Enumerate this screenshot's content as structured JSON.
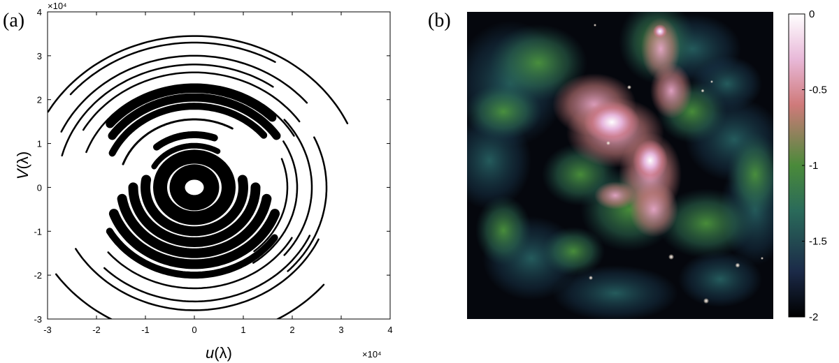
{
  "panels": {
    "a_label": "(a)",
    "b_label": "(b)"
  },
  "chart_data": [
    {
      "type": "scatter",
      "description_panel": "(a)",
      "xlabel_var": "u",
      "xlabel_unit": "(λ)",
      "ylabel_var": "V",
      "ylabel_unit": "(λ)",
      "x_exponent": "×10⁴",
      "y_exponent": "×10⁴",
      "xlim": [
        -3,
        4
      ],
      "ylim": [
        -3,
        4
      ],
      "xticks": [
        "-3",
        "-2",
        "-1",
        "0",
        "1",
        "2",
        "3",
        "4"
      ],
      "yticks": [
        "-3",
        "-2",
        "-1",
        "0",
        "1",
        "2",
        "3",
        "4"
      ],
      "grid": false,
      "legend": "none",
      "tracks": [
        {
          "r": 3.45,
          "start_deg": 150,
          "end_deg": 25,
          "width": 2.5
        },
        {
          "r": 3.3,
          "start_deg": 140,
          "end_deg": 60,
          "width": 2.5
        },
        {
          "r": 3.0,
          "start_deg": 155,
          "end_deg": 40,
          "width": 2.5
        },
        {
          "r": 2.8,
          "start_deg": 165,
          "end_deg": 55,
          "width": 2.5
        },
        {
          "r": 2.62,
          "start_deg": 150,
          "end_deg": 35,
          "width": 2.5
        },
        {
          "r": 2.35,
          "start_deg": 160,
          "end_deg": 30,
          "width": 2.5
        },
        {
          "r": 2.25,
          "start_deg": 140,
          "end_deg": 45,
          "width": 12
        },
        {
          "r": 2.05,
          "start_deg": 145,
          "end_deg": 35,
          "width": 12
        },
        {
          "r": 1.85,
          "start_deg": 155,
          "end_deg": 40,
          "width": 10
        },
        {
          "r": 1.55,
          "start_deg": 160,
          "end_deg": 60,
          "width": 3
        },
        {
          "r": 3.45,
          "start_deg": 215,
          "end_deg": 320,
          "width": 2.5
        },
        {
          "r": 2.8,
          "start_deg": 210,
          "end_deg": 335,
          "width": 2.5
        },
        {
          "r": 2.6,
          "start_deg": 225,
          "end_deg": 335,
          "width": 2.5
        },
        {
          "r": 2.3,
          "start_deg": 220,
          "end_deg": 330,
          "width": 2.5
        },
        {
          "r": 2.0,
          "start_deg": 210,
          "end_deg": 325,
          "width": 10
        },
        {
          "r": 1.75,
          "start_deg": 200,
          "end_deg": 340,
          "width": 14
        },
        {
          "r": 1.5,
          "start_deg": 190,
          "end_deg": 350,
          "width": 14
        },
        {
          "r": 1.25,
          "start_deg": 180,
          "end_deg": 360,
          "width": 14
        },
        {
          "r": 1.0,
          "start_deg": 170,
          "end_deg": 370,
          "width": 14
        },
        {
          "r": 0.7,
          "start_deg": 0,
          "end_deg": 360,
          "width": 20
        },
        {
          "r": 0.35,
          "start_deg": 0,
          "end_deg": 360,
          "width": 22
        },
        {
          "r": 2.7,
          "start_deg": 25,
          "end_deg": -45,
          "width": 2.5
        },
        {
          "r": 2.4,
          "start_deg": 40,
          "end_deg": -40,
          "width": 2.5
        },
        {
          "r": 2.1,
          "start_deg": 30,
          "end_deg": -55,
          "width": 2.5
        },
        {
          "r": 1.9,
          "start_deg": 20,
          "end_deg": -50,
          "width": 2.5
        },
        {
          "r": 1.2,
          "start_deg": 70,
          "end_deg": 130,
          "width": 10
        },
        {
          "r": 0.95,
          "start_deg": 60,
          "end_deg": 150,
          "width": 8
        }
      ]
    },
    {
      "type": "heatmap",
      "description_panel": "(b)",
      "colorbar_ticks": [
        "0",
        "-0.5",
        "-1",
        "-1.5",
        "-2"
      ],
      "colorbar_range": [
        -2,
        0
      ],
      "colormap_stops": [
        "#000000",
        "#1b2a48",
        "#2a6a5a",
        "#4a8a3a",
        "#cf7a7a",
        "#e8b8d8",
        "#ffffff"
      ]
    }
  ]
}
